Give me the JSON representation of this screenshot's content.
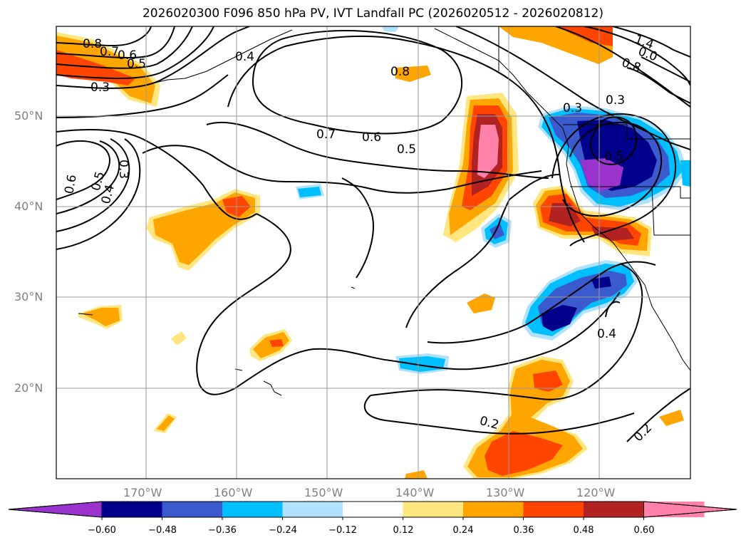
{
  "title": "2026020300 F096 850 hPa PV, IVT Landfall PC (2026020512 - 2026020812)",
  "lat_labels": [
    "50°N",
    "40°N",
    "30°N",
    "20°N"
  ],
  "lon_labels": [
    "170°W",
    "160°W",
    "150°W",
    "140°W",
    "130°W",
    "120°W"
  ],
  "contour_labels": [
    "0.8",
    "0.7",
    "0.6",
    "0.5",
    "0.3",
    "0.4",
    "0.8",
    "0.7",
    "0.6",
    "0.5",
    "0.3",
    "0.5",
    "0.4",
    "0.6",
    "0.3",
    "1.4",
    "0.0",
    "0.8",
    "0.3",
    "0.5",
    "0.4",
    "0.2",
    "0.2"
  ],
  "colorbar": {
    "ticks": [
      "−0.60",
      "−0.48",
      "−0.36",
      "−0.24",
      "−0.12",
      "0.12",
      "0.24",
      "0.36",
      "0.48",
      "0.60"
    ],
    "colors": [
      "#9a32cd",
      "#00008b",
      "#3a5acd",
      "#00bfff",
      "#b0e2ff",
      "#ffffff",
      "#ffe680",
      "#ffa500",
      "#ff4500",
      "#b22222",
      "#ff82ab",
      "#ff82ab"
    ]
  }
}
